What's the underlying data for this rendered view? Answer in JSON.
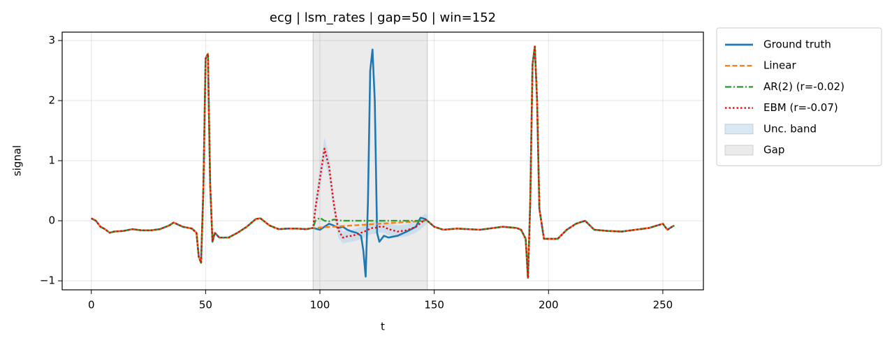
{
  "chart_data": {
    "type": "line",
    "title": "ecg | lsm_rates | gap=50 | win=152",
    "xlabel": "t",
    "ylabel": "signal",
    "x": [
      0,
      2,
      4,
      6,
      8,
      10,
      14,
      18,
      22,
      26,
      30,
      34,
      36,
      40,
      44,
      46,
      47,
      48,
      49,
      50,
      51,
      52,
      53,
      54,
      56,
      60,
      64,
      68,
      72,
      74,
      78,
      82,
      86,
      90,
      94,
      97,
      98,
      100,
      102,
      104,
      106,
      108,
      110,
      112,
      114,
      116,
      118,
      119,
      120,
      121,
      122,
      123,
      124,
      125,
      126,
      128,
      130,
      134,
      138,
      142,
      144,
      146,
      147,
      150,
      154,
      160,
      170,
      180,
      186,
      188,
      190,
      191,
      192,
      193,
      194,
      195,
      196,
      198,
      200,
      204,
      208,
      212,
      216,
      220,
      226,
      232,
      238,
      244,
      250,
      252,
      254,
      255
    ],
    "series": [
      {
        "name": "Ground truth",
        "color": "#1f77b4",
        "dash": "solid",
        "values": [
          0.04,
          0.0,
          -0.1,
          -0.14,
          -0.2,
          -0.18,
          -0.17,
          -0.14,
          -0.16,
          -0.16,
          -0.14,
          -0.08,
          -0.03,
          -0.1,
          -0.13,
          -0.2,
          -0.6,
          -0.7,
          0.5,
          2.7,
          2.78,
          0.6,
          -0.35,
          -0.2,
          -0.28,
          -0.28,
          -0.2,
          -0.1,
          0.03,
          0.04,
          -0.08,
          -0.14,
          -0.13,
          -0.13,
          -0.14,
          -0.12,
          -0.13,
          -0.15,
          -0.1,
          -0.05,
          -0.08,
          -0.12,
          -0.1,
          -0.15,
          -0.18,
          -0.2,
          -0.25,
          -0.5,
          -0.93,
          0.3,
          2.5,
          2.85,
          2.0,
          -0.2,
          -0.35,
          -0.25,
          -0.28,
          -0.25,
          -0.18,
          -0.1,
          0.05,
          0.03,
          0.0,
          -0.1,
          -0.15,
          -0.13,
          -0.15,
          -0.1,
          -0.12,
          -0.15,
          -0.3,
          -0.95,
          0.3,
          2.6,
          2.9,
          2.0,
          0.2,
          -0.3,
          -0.3,
          -0.3,
          -0.15,
          -0.05,
          0.0,
          -0.15,
          -0.17,
          -0.18,
          -0.15,
          -0.12,
          -0.05,
          -0.15,
          -0.1,
          -0.08
        ]
      },
      {
        "name": "Linear",
        "color": "#ff7f0e",
        "dash": "dashed",
        "values": [
          0.04,
          0.0,
          -0.1,
          -0.14,
          -0.2,
          -0.18,
          -0.17,
          -0.14,
          -0.16,
          -0.16,
          -0.14,
          -0.08,
          -0.03,
          -0.1,
          -0.13,
          -0.2,
          -0.6,
          -0.7,
          0.5,
          2.7,
          2.78,
          0.6,
          -0.35,
          -0.2,
          -0.28,
          -0.28,
          -0.2,
          -0.1,
          0.03,
          0.04,
          -0.08,
          -0.14,
          -0.13,
          -0.13,
          -0.14,
          -0.12,
          -0.118,
          -0.113,
          -0.108,
          -0.103,
          -0.098,
          -0.094,
          -0.089,
          -0.084,
          -0.079,
          -0.074,
          -0.07,
          -0.067,
          -0.065,
          -0.062,
          -0.06,
          -0.058,
          -0.055,
          -0.053,
          -0.05,
          -0.046,
          -0.041,
          -0.031,
          -0.022,
          -0.012,
          -0.007,
          -0.002,
          0.0,
          -0.1,
          -0.15,
          -0.13,
          -0.15,
          -0.1,
          -0.12,
          -0.15,
          -0.3,
          -0.95,
          0.3,
          2.6,
          2.9,
          2.0,
          0.2,
          -0.3,
          -0.3,
          -0.3,
          -0.15,
          -0.05,
          0.0,
          -0.15,
          -0.17,
          -0.18,
          -0.15,
          -0.12,
          -0.05,
          -0.15,
          -0.1,
          -0.08
        ]
      },
      {
        "name": "AR(2) (r=-0.02)",
        "color": "#2ca02c",
        "dash": "dashdot",
        "values": [
          0.04,
          0.0,
          -0.1,
          -0.14,
          -0.2,
          -0.18,
          -0.17,
          -0.14,
          -0.16,
          -0.16,
          -0.14,
          -0.08,
          -0.03,
          -0.1,
          -0.13,
          -0.2,
          -0.6,
          -0.7,
          0.5,
          2.7,
          2.78,
          0.6,
          -0.35,
          -0.2,
          -0.28,
          -0.28,
          -0.2,
          -0.1,
          0.03,
          0.04,
          -0.08,
          -0.14,
          -0.13,
          -0.13,
          -0.14,
          -0.12,
          0.0,
          0.05,
          0.0,
          -0.01,
          0.02,
          0.01,
          0,
          0,
          0,
          0,
          0,
          0,
          0,
          0,
          0,
          0,
          0,
          0,
          0,
          0,
          0,
          0,
          0,
          0,
          0,
          0,
          0.0,
          -0.1,
          -0.15,
          -0.13,
          -0.15,
          -0.1,
          -0.12,
          -0.15,
          -0.3,
          -0.95,
          0.3,
          2.6,
          2.9,
          2.0,
          0.2,
          -0.3,
          -0.3,
          -0.3,
          -0.15,
          -0.05,
          0.0,
          -0.15,
          -0.17,
          -0.18,
          -0.15,
          -0.12,
          -0.05,
          -0.15,
          -0.1,
          -0.08
        ]
      },
      {
        "name": "EBM (r=-0.07)",
        "color": "#ff0000",
        "dash": "dotted",
        "values": [
          0.04,
          0.0,
          -0.1,
          -0.14,
          -0.2,
          -0.18,
          -0.17,
          -0.14,
          -0.16,
          -0.16,
          -0.14,
          -0.08,
          -0.03,
          -0.1,
          -0.13,
          -0.2,
          -0.6,
          -0.7,
          0.5,
          2.7,
          2.78,
          0.6,
          -0.35,
          -0.2,
          -0.28,
          -0.28,
          -0.2,
          -0.1,
          0.03,
          0.04,
          -0.08,
          -0.14,
          -0.13,
          -0.13,
          -0.14,
          -0.12,
          0.2,
          0.7,
          1.2,
          0.9,
          0.3,
          -0.15,
          -0.28,
          -0.26,
          -0.25,
          -0.23,
          -0.2,
          -0.19,
          -0.17,
          -0.15,
          -0.13,
          -0.12,
          -0.12,
          -0.11,
          -0.1,
          -0.1,
          -0.14,
          -0.18,
          -0.16,
          -0.1,
          -0.04,
          0.02,
          0.0,
          -0.1,
          -0.15,
          -0.13,
          -0.15,
          -0.1,
          -0.12,
          -0.15,
          -0.3,
          -0.95,
          0.3,
          2.6,
          2.9,
          2.0,
          0.2,
          -0.3,
          -0.3,
          -0.3,
          -0.15,
          -0.05,
          0.0,
          -0.15,
          -0.17,
          -0.18,
          -0.15,
          -0.12,
          -0.05,
          -0.15,
          -0.1,
          -0.08
        ]
      }
    ],
    "band": {
      "name": "Unc. band",
      "color": "#a9cce8",
      "x": [
        97,
        98,
        100,
        102,
        104,
        106,
        108,
        110,
        112,
        114,
        116,
        118,
        119,
        120,
        121,
        122,
        123,
        124,
        125,
        126,
        128,
        130,
        134,
        138,
        142,
        144,
        146,
        147
      ],
      "lower": [
        -0.4,
        0.05,
        0.5,
        1.02,
        0.72,
        0.15,
        -0.28,
        -0.38,
        -0.36,
        -0.35,
        -0.33,
        -0.3,
        -0.29,
        -0.27,
        -0.25,
        -0.23,
        -0.22,
        -0.22,
        -0.21,
        -0.2,
        -0.2,
        -0.24,
        -0.28,
        -0.26,
        -0.2,
        -0.14,
        -0.08,
        -0.05
      ],
      "upper": [
        0.0,
        0.35,
        0.9,
        1.38,
        1.08,
        0.45,
        -0.02,
        -0.18,
        -0.16,
        -0.15,
        -0.13,
        -0.1,
        -0.09,
        -0.07,
        -0.05,
        -0.03,
        -0.02,
        -0.02,
        -0.01,
        0.0,
        0.0,
        -0.04,
        -0.08,
        -0.06,
        0.0,
        0.06,
        0.12,
        0.1
      ]
    },
    "gap": {
      "name": "Gap",
      "color": "#d3d3d3",
      "range": [
        97,
        147
      ]
    },
    "xlim": [
      -12.75,
      267.75
    ],
    "ylim": [
      -1.15,
      3.14
    ],
    "xticks": [
      0,
      50,
      100,
      150,
      200,
      250
    ],
    "yticks": [
      {
        "value": -1,
        "label": "−1"
      },
      0,
      1,
      2,
      3
    ],
    "grid": true,
    "legend": "outside upper right"
  }
}
